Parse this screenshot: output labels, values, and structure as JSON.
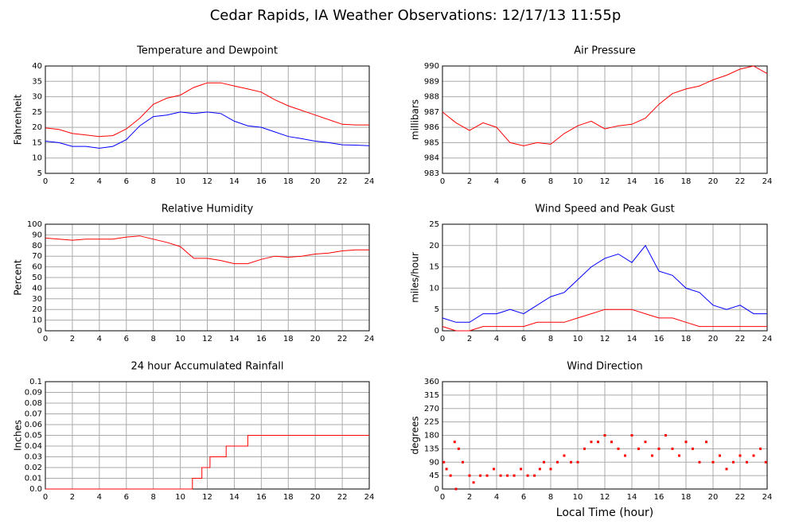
{
  "title": "Cedar Rapids, IA Weather Observations: 12/17/13 11:55p",
  "chart_data": [
    {
      "type": "line",
      "title": "Temperature and Dewpoint",
      "ylabel": "Fahrenheit",
      "grid": true,
      "xlim": [
        0,
        24
      ],
      "xticks": [
        0,
        2,
        4,
        6,
        8,
        10,
        12,
        14,
        16,
        18,
        20,
        22,
        24
      ],
      "ylim": [
        5,
        40
      ],
      "yticks": [
        5,
        10,
        15,
        20,
        25,
        30,
        35,
        40
      ],
      "x": [
        0,
        1,
        2,
        3,
        4,
        5,
        6,
        7,
        8,
        9,
        10,
        11,
        12,
        13,
        14,
        15,
        16,
        17,
        18,
        19,
        20,
        21,
        22,
        23,
        24
      ],
      "series": [
        {
          "color": "#ff0000",
          "values": [
            19.8,
            19.3,
            18,
            17.5,
            17,
            17.3,
            19.5,
            23,
            27.5,
            29.5,
            30.5,
            33,
            34.5,
            34.5,
            33.5,
            32.5,
            31.5,
            29,
            27,
            25.5,
            24,
            22.5,
            21,
            20.8,
            20.8
          ]
        },
        {
          "color": "#0000ff",
          "values": [
            15.5,
            15,
            13.8,
            13.8,
            13.2,
            13.8,
            16,
            20.5,
            23.5,
            24,
            25,
            24.5,
            25,
            24.5,
            22,
            20.5,
            20,
            18.5,
            17,
            16.3,
            15.5,
            15,
            14.3,
            14.2,
            14
          ]
        }
      ]
    },
    {
      "type": "line",
      "title": "Air Pressure",
      "ylabel": "millibars",
      "grid": true,
      "xlim": [
        0,
        24
      ],
      "xticks": [
        0,
        2,
        4,
        6,
        8,
        10,
        12,
        14,
        16,
        18,
        20,
        22,
        24
      ],
      "ylim": [
        983,
        990
      ],
      "yticks": [
        983,
        984,
        985,
        986,
        987,
        988,
        989,
        990
      ],
      "x": [
        0,
        1,
        2,
        3,
        4,
        5,
        6,
        7,
        8,
        9,
        10,
        11,
        12,
        13,
        14,
        15,
        16,
        17,
        18,
        19,
        20,
        21,
        22,
        23,
        24
      ],
      "series": [
        {
          "color": "#ff0000",
          "values": [
            987,
            986.3,
            985.8,
            986.3,
            986,
            985,
            984.8,
            985,
            984.9,
            985.6,
            986.1,
            986.4,
            985.9,
            986.1,
            986.2,
            986.6,
            987.5,
            988.2,
            988.5,
            988.7,
            989.1,
            989.4,
            989.8,
            990,
            989.5
          ]
        }
      ]
    },
    {
      "type": "line",
      "title": "Relative Humidity",
      "ylabel": "Percent",
      "grid": true,
      "xlim": [
        0,
        24
      ],
      "xticks": [
        0,
        2,
        4,
        6,
        8,
        10,
        12,
        14,
        16,
        18,
        20,
        22,
        24
      ],
      "ylim": [
        0,
        100
      ],
      "yticks": [
        0,
        10,
        20,
        30,
        40,
        50,
        60,
        70,
        80,
        90,
        100
      ],
      "x": [
        0,
        1,
        2,
        3,
        4,
        5,
        6,
        7,
        8,
        9,
        10,
        11,
        12,
        13,
        14,
        15,
        16,
        17,
        18,
        19,
        20,
        21,
        22,
        23,
        24
      ],
      "series": [
        {
          "color": "#ff0000",
          "values": [
            87,
            86,
            85,
            86,
            86,
            86,
            88,
            89,
            86,
            83,
            79,
            68,
            68,
            66,
            63,
            63,
            67,
            70,
            69,
            70,
            72,
            73,
            75,
            76,
            76
          ]
        }
      ]
    },
    {
      "type": "line",
      "title": "Wind Speed and Peak Gust",
      "ylabel": "miles/hour",
      "grid": true,
      "xlim": [
        0,
        24
      ],
      "xticks": [
        0,
        2,
        4,
        6,
        8,
        10,
        12,
        14,
        16,
        18,
        20,
        22,
        24
      ],
      "ylim": [
        0,
        25
      ],
      "yticks": [
        0,
        5,
        10,
        15,
        20,
        25
      ],
      "x": [
        0,
        1,
        2,
        3,
        4,
        5,
        6,
        7,
        8,
        9,
        10,
        11,
        12,
        13,
        14,
        15,
        16,
        17,
        18,
        19,
        20,
        21,
        22,
        23,
        24
      ],
      "series": [
        {
          "color": "#0000ff",
          "values": [
            3,
            2,
            2,
            4,
            4,
            5,
            4,
            6,
            8,
            9,
            12,
            15,
            17,
            18,
            16,
            20,
            14,
            13,
            10,
            9,
            6,
            5,
            6,
            4,
            4
          ]
        },
        {
          "color": "#ff0000",
          "values": [
            1,
            0,
            0,
            1,
            1,
            1,
            1,
            2,
            2,
            2,
            3,
            4,
            5,
            5,
            5,
            4,
            3,
            3,
            2,
            1,
            1,
            1,
            1,
            1,
            1
          ]
        }
      ]
    },
    {
      "type": "line",
      "title": "24 hour Accumulated Rainfall",
      "ylabel": "Inches",
      "grid": true,
      "xlim": [
        0,
        24
      ],
      "xticks": [
        0,
        2,
        4,
        6,
        8,
        10,
        12,
        14,
        16,
        18,
        20,
        22,
        24
      ],
      "ylim": [
        0,
        0.1
      ],
      "yticks": [
        {
          "value": 0,
          "label": "0.0"
        },
        0.01,
        0.02,
        0.03,
        0.04,
        0.05,
        0.06,
        0.07,
        0.08,
        0.09,
        0.1
      ],
      "x": [
        0,
        10.9,
        10.9,
        11.6,
        11.6,
        12.2,
        12.2,
        13.4,
        13.4,
        15,
        15,
        24
      ],
      "series": [
        {
          "color": "#ff0000",
          "values": [
            0,
            0,
            0.01,
            0.01,
            0.02,
            0.02,
            0.03,
            0.03,
            0.04,
            0.04,
            0.05,
            0.05
          ]
        }
      ]
    },
    {
      "type": "scatter",
      "title": "Wind Direction",
      "ylabel": "degrees",
      "xlabel": "Local Time (hour)",
      "grid": true,
      "xlim": [
        0,
        24
      ],
      "xticks": [
        0,
        2,
        4,
        6,
        8,
        10,
        12,
        14,
        16,
        18,
        20,
        22,
        24
      ],
      "ylim": [
        0,
        360
      ],
      "yticks": [
        0,
        45,
        90,
        135,
        180,
        225,
        270,
        315,
        360
      ],
      "x": [
        0.1,
        0.3,
        0.6,
        0.9,
        1.0,
        1.2,
        1.5,
        2.0,
        2.3,
        2.8,
        3.3,
        3.8,
        4.3,
        4.8,
        5.3,
        5.8,
        6.3,
        6.8,
        7.2,
        7.5,
        8.0,
        8.5,
        9.0,
        9.5,
        10.0,
        10.5,
        11.0,
        11.5,
        12.0,
        12.5,
        13.0,
        13.5,
        14.0,
        14.5,
        15.0,
        15.5,
        16.0,
        16.5,
        17.0,
        17.5,
        18.0,
        18.5,
        19.0,
        19.5,
        20.0,
        20.5,
        21.0,
        21.5,
        22.0,
        22.5,
        23.0,
        23.5,
        23.9
      ],
      "series": [
        {
          "color": "#ff0000",
          "values": [
            90,
            67,
            45,
            158,
            0,
            135,
            90,
            45,
            22,
            45,
            45,
            67,
            45,
            45,
            45,
            67,
            45,
            45,
            67,
            90,
            67,
            90,
            112,
            90,
            90,
            135,
            158,
            158,
            180,
            158,
            135,
            112,
            180,
            135,
            158,
            112,
            135,
            180,
            135,
            112,
            158,
            135,
            90,
            158,
            90,
            112,
            67,
            90,
            112,
            90,
            112,
            135,
            90
          ]
        }
      ]
    }
  ]
}
